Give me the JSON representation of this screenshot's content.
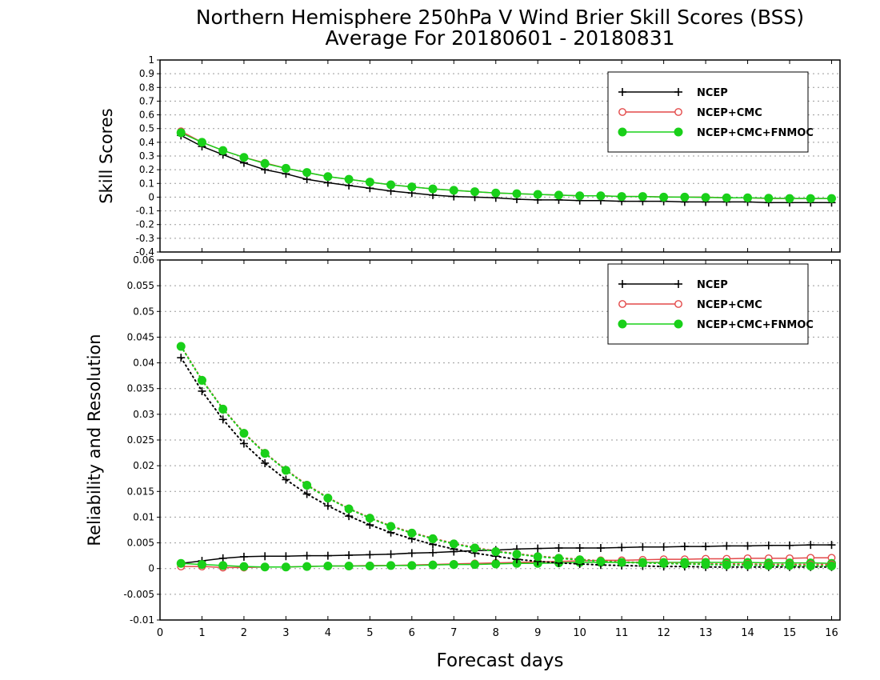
{
  "title_line1": "Northern Hemisphere 250hPa V Wind Brier Skill Scores (BSS)",
  "title_line2": "Average For 20180601 - 20180831",
  "xlabel": "Forecast days",
  "colors": {
    "NCEP": "#000000",
    "NCEP+CMC": "#e34a4a",
    "NCEP+CMC+FNMOC": "#19d019"
  },
  "chart_data": [
    {
      "type": "line",
      "panel": "top",
      "ylabel": "Skill Scores",
      "ylim": [
        -0.4,
        1
      ],
      "yticks": [
        "1",
        "0.9",
        "0.8",
        "0.7",
        "0.6",
        "0.5",
        "0.4",
        "0.3",
        "0.2",
        "0.1",
        "0",
        "-0.1",
        "-0.2",
        "-0.3",
        "-0.4"
      ],
      "xlim": [
        0,
        16.2
      ],
      "xticks": [
        "0",
        "1",
        "2",
        "3",
        "4",
        "5",
        "6",
        "7",
        "8",
        "9",
        "10",
        "11",
        "12",
        "13",
        "14",
        "15",
        "16"
      ],
      "legend_position": "top-right",
      "x": [
        0.5,
        1,
        1.5,
        2,
        2.5,
        3,
        3.5,
        4,
        4.5,
        5,
        5.5,
        6,
        6.5,
        7,
        7.5,
        8,
        8.5,
        9,
        9.5,
        10,
        10.5,
        11,
        11.5,
        12,
        12.5,
        13,
        13.5,
        14,
        14.5,
        15,
        15.5,
        16
      ],
      "series": [
        {
          "name": "NCEP",
          "marker": "plus",
          "values": [
            0.45,
            0.37,
            0.31,
            0.25,
            0.2,
            0.17,
            0.13,
            0.105,
            0.085,
            0.065,
            0.045,
            0.03,
            0.015,
            0.005,
            0,
            -0.005,
            -0.015,
            -0.02,
            -0.02,
            -0.025,
            -0.025,
            -0.03,
            -0.03,
            -0.03,
            -0.035,
            -0.035,
            -0.035,
            -0.035,
            -0.04,
            -0.04,
            -0.04,
            -0.04
          ]
        },
        {
          "name": "NCEP+CMC",
          "marker": "circle-open",
          "values": [
            0.48,
            0.4,
            0.34,
            0.29,
            0.25,
            0.21,
            0.18,
            0.15,
            0.13,
            0.11,
            0.09,
            0.075,
            0.06,
            0.05,
            0.04,
            0.03,
            0.025,
            0.02,
            0.015,
            0.01,
            0.01,
            0.005,
            0.005,
            0.002,
            0,
            0,
            -0.005,
            -0.005,
            -0.01,
            -0.01,
            -0.01,
            -0.01
          ]
        },
        {
          "name": "NCEP+CMC+FNMOC",
          "marker": "circle-filled",
          "values": [
            0.47,
            0.4,
            0.34,
            0.29,
            0.245,
            0.21,
            0.18,
            0.15,
            0.13,
            0.11,
            0.09,
            0.075,
            0.06,
            0.05,
            0.04,
            0.03,
            0.025,
            0.02,
            0.015,
            0.01,
            0.01,
            0.005,
            0.005,
            0,
            0,
            -0.002,
            -0.005,
            -0.005,
            -0.008,
            -0.01,
            -0.01,
            -0.01
          ]
        }
      ]
    },
    {
      "type": "line",
      "panel": "bottom",
      "ylabel": "Reliability and Resolution",
      "ylim": [
        -0.01,
        0.06
      ],
      "yticks": [
        "0.06",
        "0.055",
        "0.05",
        "0.045",
        "0.04",
        "0.035",
        "0.03",
        "0.025",
        "0.02",
        "0.015",
        "0.01",
        "0.005",
        "0",
        "-0.005",
        "-0.01"
      ],
      "xlim": [
        0,
        16.2
      ],
      "xticks": [
        "0",
        "1",
        "2",
        "3",
        "4",
        "5",
        "6",
        "7",
        "8",
        "9",
        "10",
        "11",
        "12",
        "13",
        "14",
        "15",
        "16"
      ],
      "legend_position": "top-right",
      "x": [
        0.5,
        1,
        1.5,
        2,
        2.5,
        3,
        3.5,
        4,
        4.5,
        5,
        5.5,
        6,
        6.5,
        7,
        7.5,
        8,
        8.5,
        9,
        9.5,
        10,
        10.5,
        11,
        11.5,
        12,
        12.5,
        13,
        13.5,
        14,
        14.5,
        15,
        15.5,
        16
      ],
      "series": [
        {
          "name": "NCEP",
          "line": "solid",
          "marker": "plus",
          "values": [
            0.001,
            0.0015,
            0.002,
            0.0023,
            0.0024,
            0.0024,
            0.0025,
            0.0025,
            0.0026,
            0.0027,
            0.0028,
            0.003,
            0.0031,
            0.0033,
            0.0035,
            0.0036,
            0.0038,
            0.0039,
            0.004,
            0.004,
            0.004,
            0.0041,
            0.0042,
            0.0042,
            0.0043,
            0.0043,
            0.0044,
            0.0044,
            0.0045,
            0.0045,
            0.0046,
            0.0046
          ]
        },
        {
          "line": "solid",
          "marker": "circle-open",
          "values": [
            0.0004,
            0.0004,
            0.0002,
            0.0002,
            0.0003,
            0.0003,
            0.0004,
            0.0005,
            0.0005,
            0.0006,
            0.0006,
            0.0007,
            0.0008,
            0.0009,
            0.001,
            0.0011,
            0.0012,
            0.0013,
            0.0014,
            0.0015,
            0.0016,
            0.0016,
            0.0017,
            0.0018,
            0.0018,
            0.0019,
            0.0019,
            0.002,
            0.002,
            0.002,
            0.0021,
            0.0021
          ]
        },
        {
          "line": "solid",
          "marker": "circle-filled",
          "values": [
            0.001,
            0.0008,
            0.0006,
            0.0004,
            0.0003,
            0.0003,
            0.0004,
            0.0005,
            0.0005,
            0.0005,
            0.0006,
            0.0006,
            0.0007,
            0.0008,
            0.0008,
            0.0009,
            0.001,
            0.001,
            0.0011,
            0.0012,
            0.0012,
            0.0012,
            0.0012,
            0.0012,
            0.0012,
            0.0012,
            0.0012,
            0.0012,
            0.0011,
            0.0011,
            0.0011,
            0.001
          ]
        },
        {
          "line": "dotted",
          "marker": "plus",
          "values": [
            0.041,
            0.0345,
            0.029,
            0.0243,
            0.0205,
            0.0173,
            0.0145,
            0.0122,
            0.0102,
            0.0085,
            0.007,
            0.0058,
            0.0047,
            0.0038,
            0.003,
            0.0024,
            0.0018,
            0.0014,
            0.0011,
            0.0009,
            0.0007,
            0.0006,
            0.0005,
            0.0004,
            0.0004,
            0.0003,
            0.0003,
            0.0003,
            0.0003,
            0.0003,
            0.0003,
            0.0003
          ]
        },
        {
          "line": "dotted",
          "marker": "circle-open",
          "values": [
            0.0433,
            0.0367,
            0.0311,
            0.0264,
            0.0225,
            0.0192,
            0.0163,
            0.0138,
            0.0117,
            0.0099,
            0.0083,
            0.007,
            0.0059,
            0.0049,
            0.0041,
            0.0034,
            0.0029,
            0.0024,
            0.0021,
            0.0018,
            0.0015,
            0.0013,
            0.0012,
            0.0011,
            0.001,
            0.0009,
            0.0009,
            0.0009,
            0.0008,
            0.0008,
            0.0008,
            0.0008
          ]
        },
        {
          "line": "dotted",
          "marker": "circle-filled",
          "values": [
            0.0432,
            0.0366,
            0.031,
            0.0263,
            0.0224,
            0.0191,
            0.0162,
            0.0137,
            0.0116,
            0.0098,
            0.0082,
            0.0069,
            0.0058,
            0.0048,
            0.004,
            0.0033,
            0.0028,
            0.0023,
            0.002,
            0.0017,
            0.0014,
            0.0012,
            0.0011,
            0.001,
            0.0009,
            0.0008,
            0.0007,
            0.0007,
            0.0006,
            0.0006,
            0.0005,
            0.0005
          ]
        }
      ]
    }
  ],
  "legend_entries": [
    "NCEP",
    "NCEP+CMC",
    "NCEP+CMC+FNMOC"
  ]
}
